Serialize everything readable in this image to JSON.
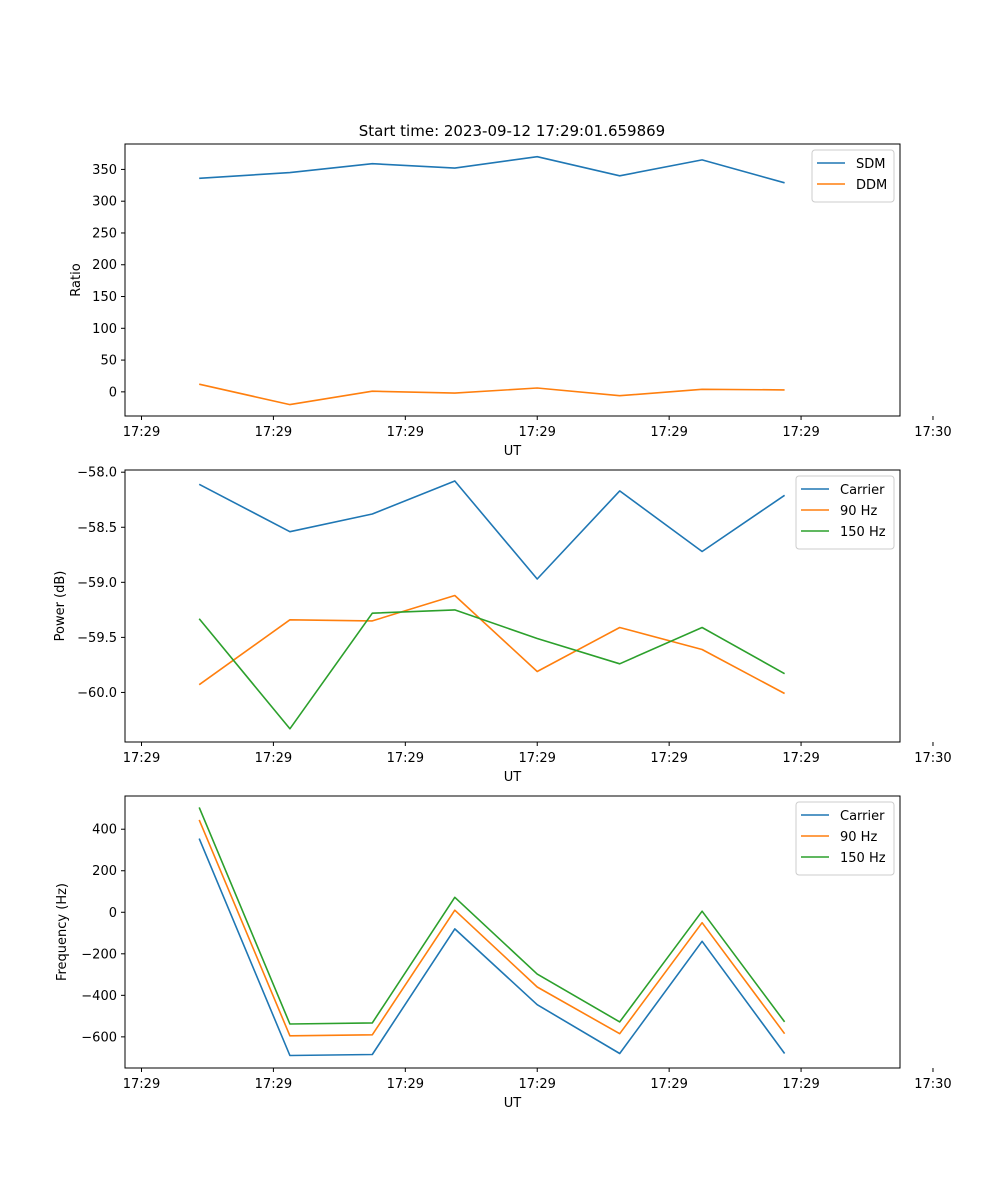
{
  "figure": {
    "title": "Start time: 2023-09-12 17:29:01.659869"
  },
  "chart_data": [
    {
      "type": "line",
      "title": "Start time: 2023-09-12 17:29:01.659869",
      "xlabel": "UT",
      "ylabel": "Ratio",
      "x": [
        0.45,
        1.0,
        1.5,
        2.0,
        2.5,
        3.0,
        3.5,
        4.0
      ],
      "xlim": [
        0,
        4.7
      ],
      "x_ticks": [
        0.1,
        0.9,
        1.7,
        2.5,
        3.3,
        4.1,
        4.9
      ],
      "x_tick_labels": [
        "17:29",
        "17:29",
        "17:29",
        "17:29",
        "17:29",
        "17:29",
        "17:30"
      ],
      "ylim": [
        -38,
        390
      ],
      "y_ticks": [
        0,
        50,
        100,
        150,
        200,
        250,
        300,
        350
      ],
      "y_tick_labels": [
        "0",
        "50",
        "100",
        "150",
        "200",
        "250",
        "300",
        "350"
      ],
      "legend_position": "top-right",
      "series": [
        {
          "name": "SDM",
          "color": "#1f77b4",
          "values": [
            336,
            345,
            359,
            352,
            370,
            340,
            365,
            329
          ]
        },
        {
          "name": "DDM",
          "color": "#ff7f0e",
          "values": [
            12,
            -20,
            1,
            -2,
            6,
            -6,
            4,
            3
          ]
        }
      ]
    },
    {
      "type": "line",
      "title": "",
      "xlabel": "UT",
      "ylabel": "Power (dB)",
      "x": [
        0.45,
        1.0,
        1.5,
        2.0,
        2.5,
        3.0,
        3.5,
        4.0
      ],
      "xlim": [
        0,
        4.7
      ],
      "x_ticks": [
        0.1,
        0.9,
        1.7,
        2.5,
        3.3,
        4.1,
        4.9
      ],
      "x_tick_labels": [
        "17:29",
        "17:29",
        "17:29",
        "17:29",
        "17:29",
        "17:29",
        "17:30"
      ],
      "ylim": [
        -60.45,
        -57.98
      ],
      "y_ticks": [
        -60.0,
        -59.5,
        -59.0,
        -58.5,
        -58.0
      ],
      "y_tick_labels": [
        "−60.0",
        "−59.5",
        "−59.0",
        "−58.5",
        "−58.0"
      ],
      "legend_position": "top-right",
      "series": [
        {
          "name": "Carrier",
          "color": "#1f77b4",
          "values": [
            -58.11,
            -58.54,
            -58.38,
            -58.08,
            -58.97,
            -58.17,
            -58.72,
            -58.21
          ]
        },
        {
          "name": "90 Hz",
          "color": "#ff7f0e",
          "values": [
            -59.93,
            -59.34,
            -59.35,
            -59.12,
            -59.81,
            -59.41,
            -59.61,
            -60.01
          ]
        },
        {
          "name": "150 Hz",
          "color": "#2ca02c",
          "values": [
            -59.33,
            -60.33,
            -59.28,
            -59.25,
            -59.51,
            -59.74,
            -59.41,
            -59.83
          ]
        }
      ]
    },
    {
      "type": "line",
      "title": "",
      "xlabel": "UT",
      "ylabel": "Frequency (Hz)",
      "x": [
        0.45,
        1.0,
        1.5,
        2.0,
        2.5,
        3.0,
        3.5,
        4.0
      ],
      "xlim": [
        0,
        4.7
      ],
      "x_ticks": [
        0.1,
        0.9,
        1.7,
        2.5,
        3.3,
        4.1,
        4.9
      ],
      "x_tick_labels": [
        "17:29",
        "17:29",
        "17:29",
        "17:29",
        "17:29",
        "17:29",
        "17:30"
      ],
      "ylim": [
        -750,
        560
      ],
      "y_ticks": [
        -600,
        -400,
        -200,
        0,
        200,
        400
      ],
      "y_tick_labels": [
        "−600",
        "−400",
        "−200",
        "0",
        "200",
        "400"
      ],
      "legend_position": "top-right",
      "series": [
        {
          "name": "Carrier",
          "color": "#1f77b4",
          "values": [
            355,
            -690,
            -685,
            -80,
            -445,
            -680,
            -140,
            -680
          ]
        },
        {
          "name": "90 Hz",
          "color": "#ff7f0e",
          "values": [
            445,
            -595,
            -590,
            10,
            -360,
            -585,
            -50,
            -585
          ]
        },
        {
          "name": "150 Hz",
          "color": "#2ca02c",
          "values": [
            505,
            -538,
            -533,
            72,
            -298,
            -528,
            5,
            -528
          ]
        }
      ]
    }
  ]
}
